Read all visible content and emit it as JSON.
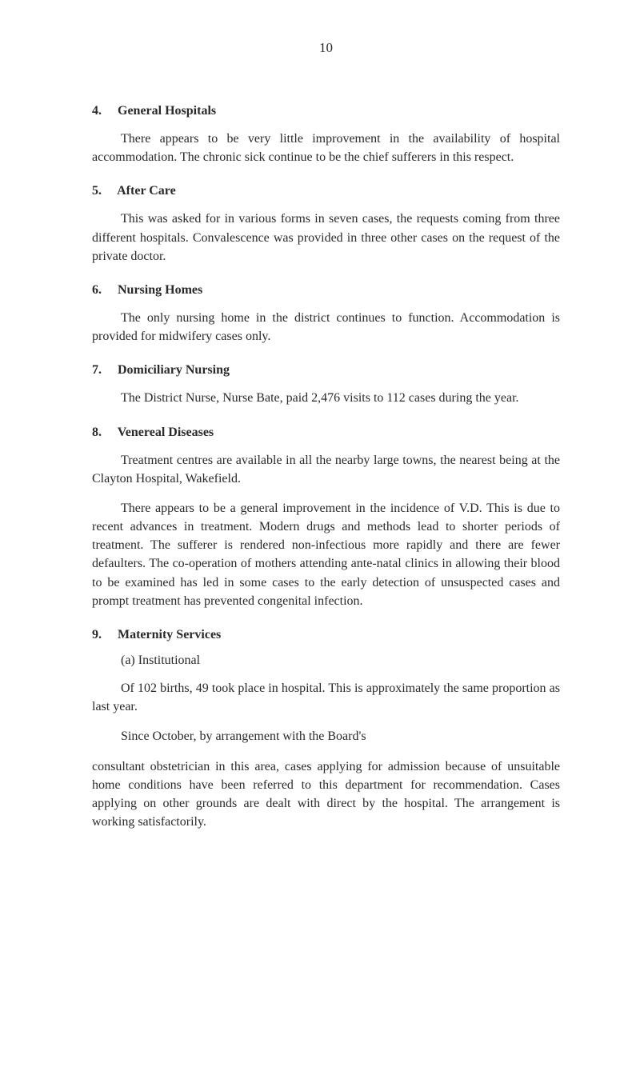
{
  "page_number": "10",
  "sections": {
    "s4": {
      "number": "4.",
      "title": "General Hospitals",
      "para1": "There appears to be very little improvement in the availability of hospital accommodation. The chronic sick continue to be the chief sufferers in this respect."
    },
    "s5": {
      "number": "5.",
      "title": "After Care",
      "para1": "This was asked for in various forms in seven cases, the requests coming from three different hospitals. Convalescence was provided in three other cases on the request of the private doctor."
    },
    "s6": {
      "number": "6.",
      "title": "Nursing Homes",
      "para1": "The only nursing home in the district continues to function. Accommodation is provided for midwifery cases only."
    },
    "s7": {
      "number": "7.",
      "title": "Domiciliary Nursing",
      "para1": "The District Nurse, Nurse Bate, paid 2,476 visits to 112 cases during the year."
    },
    "s8": {
      "number": "8.",
      "title": "Venereal Diseases",
      "para1": "Treatment centres are available in all the nearby large towns, the nearest being at the Clayton Hospital, Wakefield.",
      "para2": "There appears to be a general improvement in the incidence of V.D. This is due to recent advances in treatment. Modern drugs and methods lead to shorter periods of treatment. The sufferer is rendered non-infectious more rapidly and there are fewer defaulters. The co-operation of mothers attending ante-natal clinics in allowing their blood to be examined has led in some cases to the early detection of unsuspected cases and prompt treatment has prevented congenital infection."
    },
    "s9": {
      "number": "9.",
      "title": "Maternity Services",
      "sub_a": "(a) Institutional",
      "para1": "Of 102 births, 49 took place in hospital. This is approximately the same proportion as last year.",
      "para2": "Since October, by arrangement with the Board's",
      "para3": "consultant obstetrician in this area, cases applying for admission because of unsuitable home conditions have been referred to this department for recommendation. Cases applying on other grounds are dealt with direct by the hospital. The arrangement is working satisfactorily."
    }
  },
  "typography": {
    "body_fontsize": 16,
    "heading_fontsize": 16,
    "text_color": "#2a2a2a",
    "background_color": "#ffffff",
    "line_height": 1.45
  }
}
